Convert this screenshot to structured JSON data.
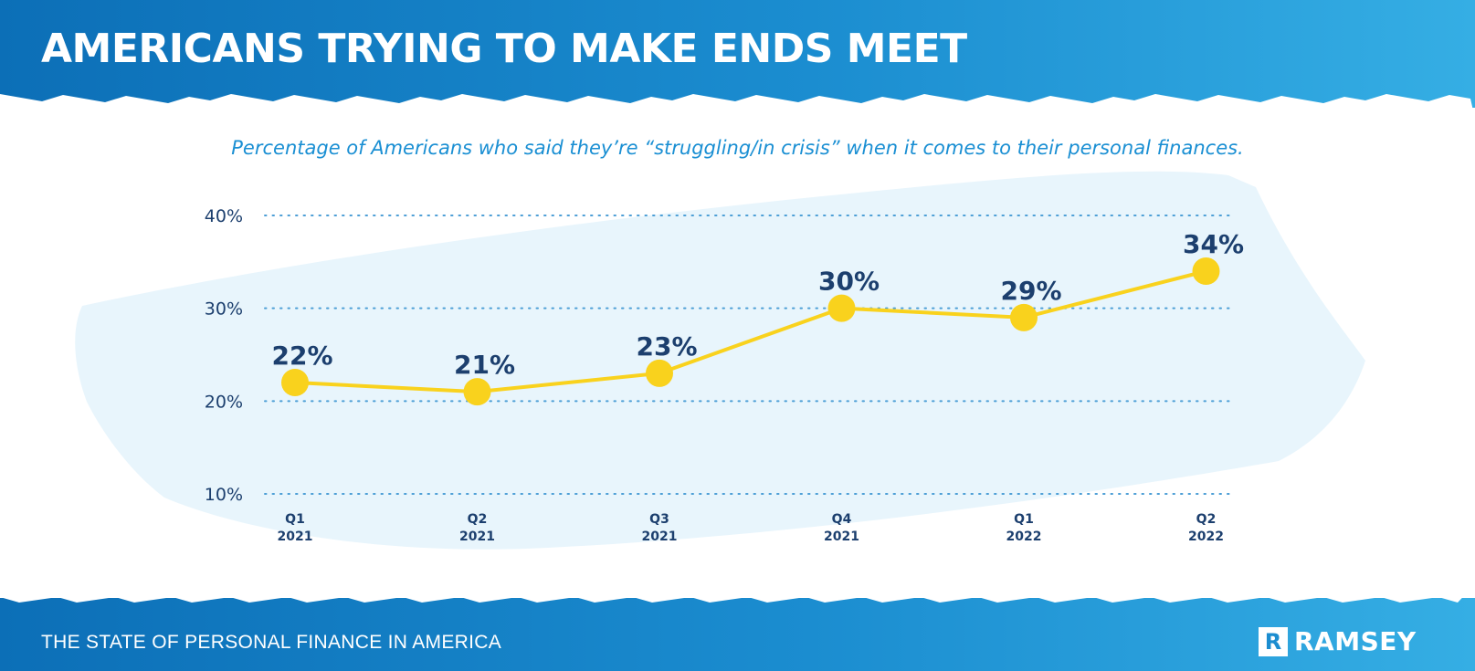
{
  "header": {
    "title": "AMERICANS TRYING TO MAKE ENDS MEET"
  },
  "footer": {
    "text": "THE STATE OF PERSONAL FINANCE IN AMERICA",
    "logo": "RAMSEY",
    "logo_mark": "R"
  },
  "colors": {
    "banner": "#1b8dd0",
    "line": "#f9d21d",
    "text_dark": "#1c3f6e",
    "subtitle": "#1a8fd3",
    "brush": "#e8f5fc"
  },
  "chart_data": {
    "type": "line",
    "title": "Percentage of Americans who said they’re “struggling/in crisis” when it comes to their personal finances.",
    "categories": [
      [
        "Q1",
        "2021"
      ],
      [
        "Q2",
        "2021"
      ],
      [
        "Q3",
        "2021"
      ],
      [
        "Q4",
        "2021"
      ],
      [
        "Q1",
        "2022"
      ],
      [
        "Q2",
        "2022"
      ]
    ],
    "values": [
      22,
      21,
      23,
      30,
      29,
      34
    ],
    "value_labels": [
      "22%",
      "21%",
      "23%",
      "30%",
      "29%",
      "34%"
    ],
    "yticks": [
      10,
      20,
      30,
      40
    ],
    "ytick_labels": [
      "10%",
      "20%",
      "30%",
      "40%"
    ],
    "ylim": [
      10,
      40
    ],
    "grid": true
  }
}
